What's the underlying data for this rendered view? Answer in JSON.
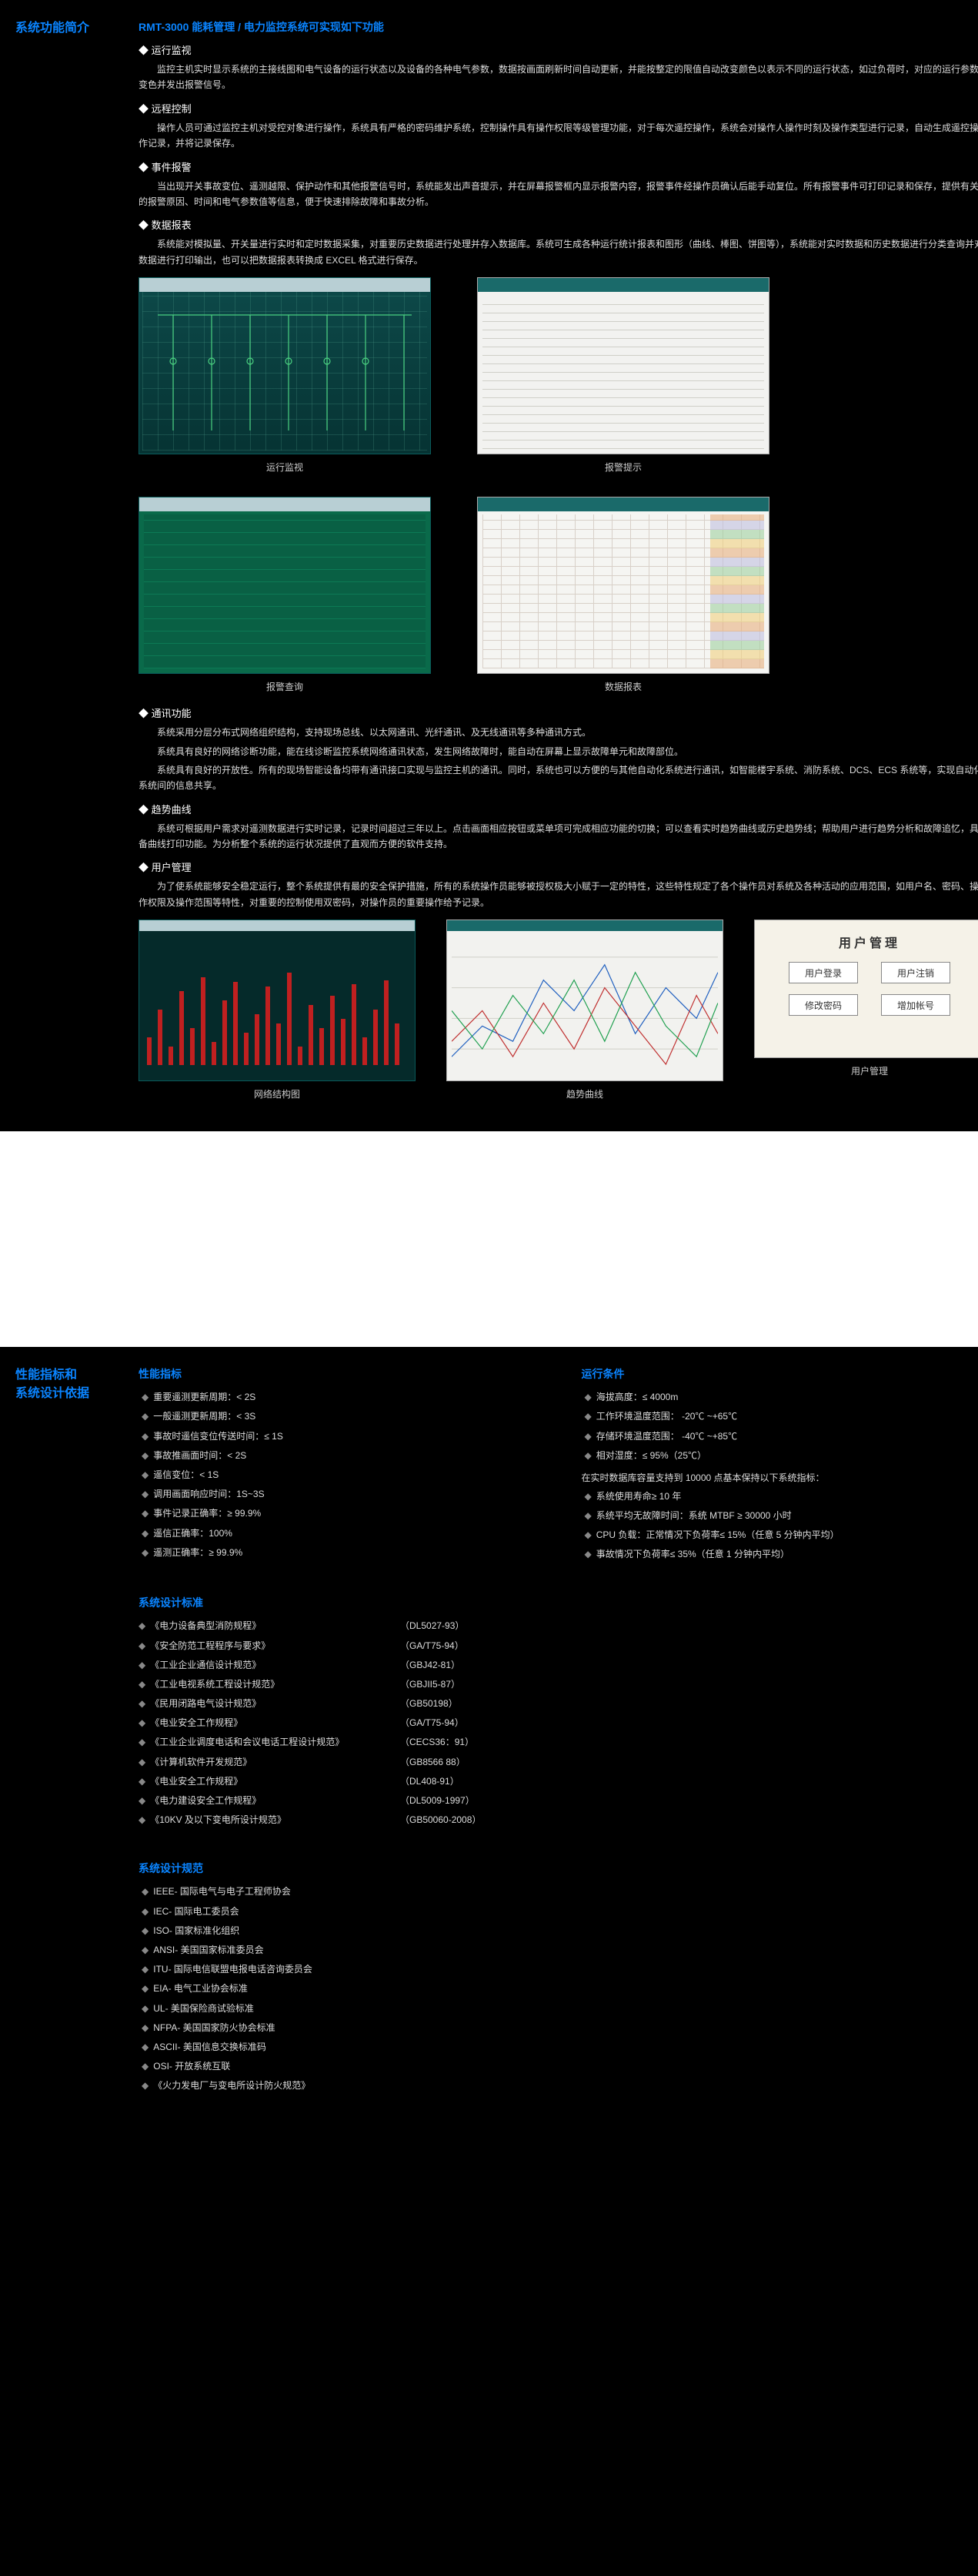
{
  "page1": {
    "left_title": "系统功能简介",
    "subtitle": "RMT-3000 能耗管理 / 电力监控系统可实现如下功能",
    "sections": [
      {
        "heading": "◆ 运行监视",
        "paras": [
          "监控主机实时显示系统的主接线图和电气设备的运行状态以及设备的各种电气参数，数据按画面刷新时间自动更新，并能按整定的限值自动改变颜色以表示不同的运行状态，如过负荷时，对应的运行参数变色并发出报警信号。"
        ]
      },
      {
        "heading": "◆ 远程控制",
        "paras": [
          "操作人员可通过监控主机对受控对象进行操作，系统具有严格的密码维护系统，控制操作具有操作权限等级管理功能，对于每次遥控操作，系统会对操作人操作时刻及操作类型进行记录，自动生成遥控操作记录，并将记录保存。"
        ]
      },
      {
        "heading": "◆ 事件报警",
        "paras": [
          "当出现开关事故变位、遥测越限、保护动作和其他报警信号时，系统能发出声音提示，并在屏幕报警框内显示报警内容，报警事件经操作员确认后能手动复位。所有报警事件可打印记录和保存，提供有关的报警原因、时间和电气参数值等信息，便于快速排除故障和事故分析。"
        ]
      },
      {
        "heading": "◆ 数据报表",
        "paras": [
          "系统能对模拟量、开关量进行实时和定时数据采集，对重要历史数据进行处理并存入数据库。系统可生成各种运行统计报表和图形（曲线、棒图、饼图等），系统能对实时数据和历史数据进行分类查询并对数据进行打印输出，也可以把数据报表转换成 EXCEL 格式进行保存。"
        ]
      }
    ],
    "grid_captions": [
      "运行监视",
      "报警提示",
      "报警查询",
      "数据报表"
    ],
    "sections2": [
      {
        "heading": "◆ 通讯功能",
        "paras": [
          "系统采用分层分布式网络组织结构，支持现场总线、以太网通讯、光纤通讯、及无线通讯等多种通讯方式。",
          "系统具有良好的网络诊断功能，能在线诊断监控系统网络通讯状态，发生网络故障时，能自动在屏幕上显示故障单元和故障部位。",
          "系统具有良好的开放性。所有的现场智能设备均带有通讯接口实现与监控主机的通讯。同时，系统也可以方便的与其他自动化系统进行通讯，如智能楼宇系统、消防系统、DCS、ECS 系统等，实现自动化系统间的信息共享。"
        ]
      },
      {
        "heading": "◆ 趋势曲线",
        "paras": [
          "系统可根据用户需求对遥测数据进行实时记录，记录时间超过三年以上。点击画面相应按钮或菜单项可完成相应功能的切换；可以查看实时趋势曲线或历史趋势线；帮助用户进行趋势分析和故障追忆，具备曲线打印功能。为分析整个系统的运行状况提供了直观而方便的软件支持。"
        ]
      },
      {
        "heading": "◆ 用户管理",
        "paras": [
          "为了使系统能够安全稳定运行，整个系统提供有最的安全保护措施，所有的系统操作员能够被授权极大小赋于一定的特性，这些特性规定了各个操作员对系统及各种活动的应用范围，如用户名、密码、操作权限及操作范围等特性，对重要的控制使用双密码，对操作员的重要操作给予记录。"
        ]
      }
    ],
    "row3_captions": [
      "网络结构图",
      "趋势曲线",
      "用户管理"
    ],
    "user_mgmt": {
      "title": "用户管理",
      "btn1": "用户登录",
      "btn2": "用户注销",
      "btn3": "修改密码",
      "btn4": "增加帐号"
    },
    "net_bars": [
      30,
      60,
      20,
      80,
      40,
      95,
      25,
      70,
      90,
      35,
      55,
      85,
      45,
      100,
      20,
      65,
      40,
      75,
      50,
      88,
      30,
      60,
      92,
      45
    ]
  },
  "page2": {
    "left_title": "性能指标和\n系统设计依据",
    "perf_heading": "性能指标",
    "run_heading": "运行条件",
    "perf": [
      "重要遥测更新周期：< 2S",
      "一般遥测更新周期：< 3S",
      "事故时遥信变位传送时间：≤ 1S",
      "事故推画面时间：< 2S",
      "遥信变位：< 1S",
      "调用画面响应时间：1S~3S",
      "事件记录正确率：≥ 99.9%",
      "遥信正确率：100%",
      "遥测正确率：≥ 99.9%"
    ],
    "run": [
      "海拔高度：≤ 4000m",
      "工作环境温度范围：  -20℃ ~+65℃",
      "存储环境温度范围：  -40℃ ~+85℃",
      "相对湿度：≤ 95%（25℃）"
    ],
    "run_tail_text": "在实时数据库容量支持到 10000 点基本保持以下系统指标：",
    "run2": [
      "系统使用寿命≥ 10 年",
      "系统平均无故障时间：系统 MTBF ≥ 30000 小时",
      "CPU 负载：正常情况下负荷率≤ 15%（任意 5 分钟内平均）",
      "事故情况下负荷率≤ 35%（任意 1 分钟内平均）"
    ],
    "std_heading": "系统设计标准",
    "standards": [
      {
        "name": "《电力设备典型消防规程》",
        "code": "（DL5027-93）"
      },
      {
        "name": "《安全防范工程程序与要求》",
        "code": "（GA/T75-94）"
      },
      {
        "name": "《工业企业通信设计规范》",
        "code": "（GBJ42-81）"
      },
      {
        "name": "《工业电视系统工程设计规范》",
        "code": "（GBJII5-87）"
      },
      {
        "name": "《民用闭路电气设计规范》",
        "code": "（GB50198）"
      },
      {
        "name": "《电业安全工作规程》",
        "code": "（GA/T75-94）"
      },
      {
        "name": "《工业企业调度电话和会议电话工程设计规范》",
        "code": "（CECS36：91）"
      },
      {
        "name": "《计算机软件开发规范》",
        "code": "（GB8566 88）"
      },
      {
        "name": "《电业安全工作规程》",
        "code": "（DL408-91）"
      },
      {
        "name": "《电力建设安全工作规程》",
        "code": "（DL5009-1997）"
      },
      {
        "name": "《10KV 及以下变电所设计规范》",
        "code": "（GB50060-2008）"
      }
    ],
    "spec_heading": "系统设计规范",
    "specs": [
      "IEEE- 国际电气与电子工程师协会",
      "IEC- 国际电工委员会",
      "ISO- 国家标准化组织",
      "ANSI- 美国国家标准委员会",
      "ITU- 国际电信联盟电报电话咨询委员会",
      "EIA- 电气工业协会标准",
      "UL- 美国保险商试验标准",
      "NFPA- 美国国家防火协会标准",
      "ASCII- 美国信息交换标准码",
      "OSI- 开放系统互联",
      "《火力发电厂与变电所设计防火规范》"
    ]
  }
}
